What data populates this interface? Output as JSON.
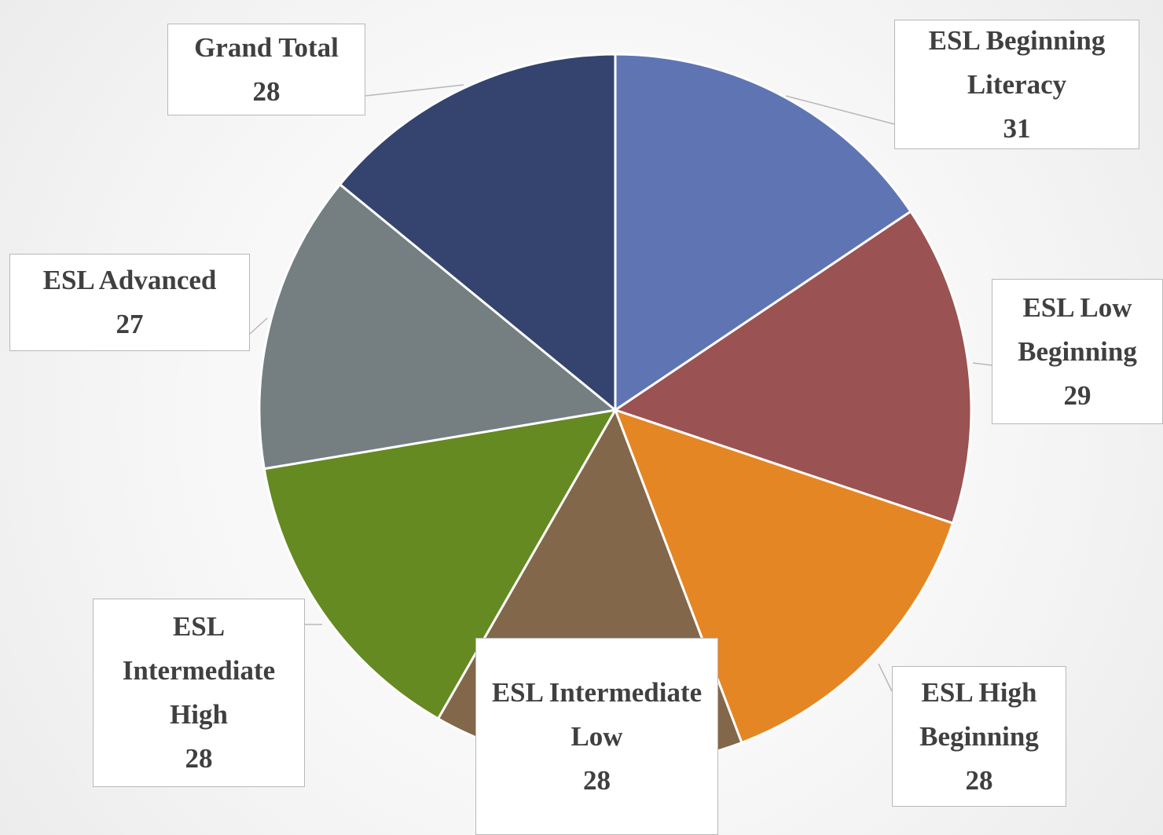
{
  "chart_data": {
    "type": "pie",
    "categories": [
      "ESL Beginning Literacy",
      "ESL Low Beginning",
      "ESL High Beginning",
      "ESL Intermediate Low",
      "ESL Intermediate High",
      "ESL Advanced",
      "Grand Total"
    ],
    "values": [
      31,
      29,
      28,
      28,
      28,
      27,
      28
    ],
    "colors": [
      "#5f75b3",
      "#9b5252",
      "#e58624",
      "#82674a",
      "#658a21",
      "#757f82",
      "#34446f"
    ]
  }
}
